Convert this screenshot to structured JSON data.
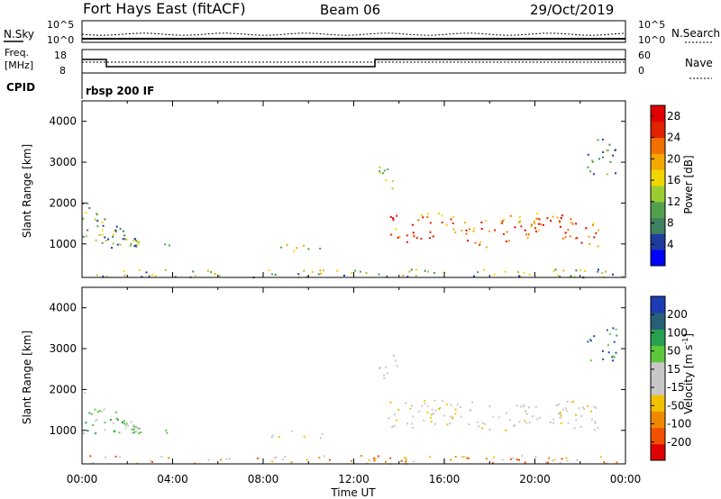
{
  "header": {
    "station": "Fort Hays East (fitACF)",
    "beam": "Beam 06",
    "date": "29/Oct/2019"
  },
  "top_panels": {
    "nsky": {
      "label": "N.Sky",
      "tick_top": "10^5",
      "tick_bottom": "10^0"
    },
    "nsearch": {
      "label": "N.Search",
      "tick_top": "10^5",
      "tick_bottom": "10^0"
    },
    "freq": {
      "label1": "Freq.",
      "label2": "[MHz]",
      "tick_top": "18",
      "tick_bottom": "8"
    },
    "nave": {
      "label": "Nave",
      "tick_top": "60",
      "tick_bottom": "0"
    },
    "cpid": {
      "label": "CPID",
      "value": "rbsp 200 IF"
    }
  },
  "colors": {
    "power": [
      "#0000ff",
      "#1e3ca0",
      "#3e8060",
      "#52a04e",
      "#9acd32",
      "#f2d600",
      "#f3a700",
      "#f07000",
      "#e02200",
      "#e00000"
    ],
    "velocity": [
      "#e00000",
      "#f05000",
      "#f08800",
      "#f2c200",
      "#c8c8c8",
      "#c8c8c8",
      "#5ec83c",
      "#28a050",
      "#286078",
      "#1e3cb4"
    ]
  },
  "chart_data": [
    {
      "type": "heatmap",
      "name": "power",
      "xlabel": "",
      "ylabel": "Slant Range [km]",
      "xlim": [
        0,
        24
      ],
      "ylim": [
        180,
        4500
      ],
      "x_ticks": [
        "00:00",
        "04:00",
        "08:00",
        "12:00",
        "16:00",
        "20:00",
        "00:00"
      ],
      "y_ticks": [
        "1000",
        "2000",
        "3000",
        "4000"
      ],
      "colorbar_label": "Power [dB]",
      "colorbar_ticks": [
        "4",
        "8",
        "12",
        "16",
        "20",
        "24",
        "28"
      ],
      "colorbar_range": [
        0,
        30
      ]
    },
    {
      "type": "heatmap",
      "name": "velocity",
      "xlabel": "Time UT",
      "ylabel": "Slant Range [km]",
      "xlim": [
        0,
        24
      ],
      "ylim": [
        180,
        4500
      ],
      "x_ticks": [
        "00:00",
        "04:00",
        "08:00",
        "12:00",
        "16:00",
        "20:00",
        "00:00"
      ],
      "y_ticks": [
        "1000",
        "2000",
        "3000",
        "4000"
      ],
      "colorbar_label": "Velocity [m s",
      "colorbar_label_sup": "-1",
      "colorbar_label_end": "]",
      "colorbar_ticks": [
        "200",
        "100",
        "50",
        "15",
        "-15",
        "-50",
        "-100",
        "-200"
      ]
    }
  ]
}
